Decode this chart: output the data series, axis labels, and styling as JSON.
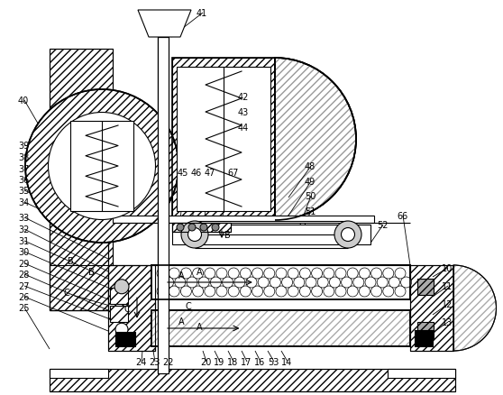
{
  "bg_color": "#ffffff",
  "lc": "#000000",
  "fig_w": 5.58,
  "fig_h": 4.39,
  "dpi": 100,
  "labels": [
    [
      "41",
      215,
      12
    ],
    [
      "40",
      18,
      108
    ],
    [
      "42",
      262,
      105
    ],
    [
      "43",
      262,
      122
    ],
    [
      "44",
      262,
      138
    ],
    [
      "45",
      195,
      190
    ],
    [
      "46",
      210,
      190
    ],
    [
      "47",
      225,
      190
    ],
    [
      "67",
      250,
      190
    ],
    [
      "48",
      335,
      182
    ],
    [
      "49",
      335,
      198
    ],
    [
      "50",
      335,
      214
    ],
    [
      "51",
      335,
      232
    ],
    [
      "52",
      415,
      248
    ],
    [
      "66",
      435,
      238
    ],
    [
      "39",
      18,
      160
    ],
    [
      "38",
      18,
      172
    ],
    [
      "37",
      18,
      184
    ],
    [
      "36",
      18,
      196
    ],
    [
      "35",
      18,
      208
    ],
    [
      "34",
      18,
      220
    ],
    [
      "33",
      18,
      240
    ],
    [
      "32",
      18,
      252
    ],
    [
      "31",
      18,
      263
    ],
    [
      "30",
      18,
      276
    ],
    [
      "29",
      18,
      288
    ],
    [
      "28",
      18,
      300
    ],
    [
      "27",
      18,
      312
    ],
    [
      "26",
      18,
      324
    ],
    [
      "25",
      18,
      336
    ],
    [
      "10",
      488,
      295
    ],
    [
      "11",
      488,
      316
    ],
    [
      "12",
      488,
      336
    ],
    [
      "13",
      488,
      355
    ],
    [
      "24",
      148,
      400
    ],
    [
      "23",
      162,
      400
    ],
    [
      "22",
      176,
      400
    ],
    [
      "20",
      218,
      400
    ],
    [
      "19",
      233,
      400
    ],
    [
      "18",
      248,
      400
    ],
    [
      "17",
      263,
      400
    ],
    [
      "16",
      278,
      400
    ],
    [
      "53",
      295,
      400
    ],
    [
      "14",
      310,
      400
    ]
  ]
}
